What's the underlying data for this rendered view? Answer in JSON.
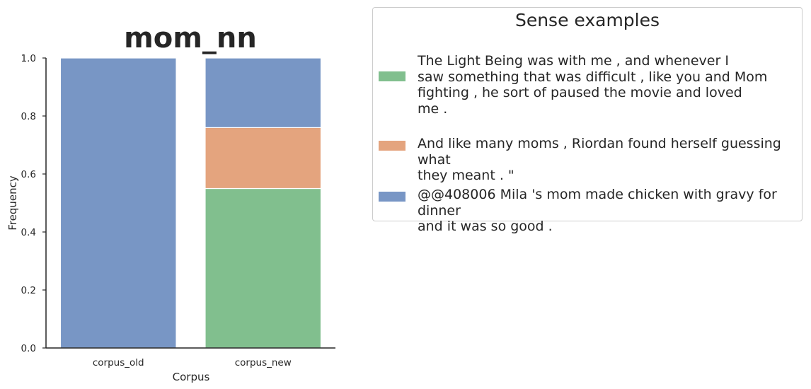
{
  "chart_data": {
    "type": "bar",
    "stacked": true,
    "title": "mom_nn",
    "xlabel": "Corpus",
    "ylabel": "Frequency",
    "categories": [
      "corpus_old",
      "corpus_new"
    ],
    "ylim": [
      0,
      1.0
    ],
    "yticks": [
      "0.0",
      "0.2",
      "0.4",
      "0.6",
      "0.8",
      "1.0"
    ],
    "series": [
      {
        "name": "The Light Being was with me , and whenever I saw something that was difficult , like you and Mom fighting , he sort of paused the movie and loved me .",
        "color": "#81bf8e",
        "values": [
          0.0,
          0.55
        ]
      },
      {
        "name": "And like many moms , Riordan found herself guessing what they meant . \"",
        "color": "#e4a47e",
        "values": [
          0.0,
          0.21
        ]
      },
      {
        "name": "@@408006 Mila 's mom made chicken with gravy for dinner and it was so good .",
        "color": "#7896c5",
        "values": [
          1.0,
          0.24
        ]
      }
    ],
    "legend": {
      "title": "Sense examples",
      "placement": "outside-right",
      "lines": [
        [
          "The Light Being was with me , and whenever I",
          "saw something that was difficult , like you and Mom",
          "fighting , he sort of paused the movie and loved",
          "me ."
        ],
        [
          "And like many moms , Riordan found herself guessing what",
          "they meant . \""
        ],
        [
          "@@408006 Mila 's mom made chicken with gravy for dinner",
          "and it was so good ."
        ]
      ]
    },
    "grid": false
  }
}
